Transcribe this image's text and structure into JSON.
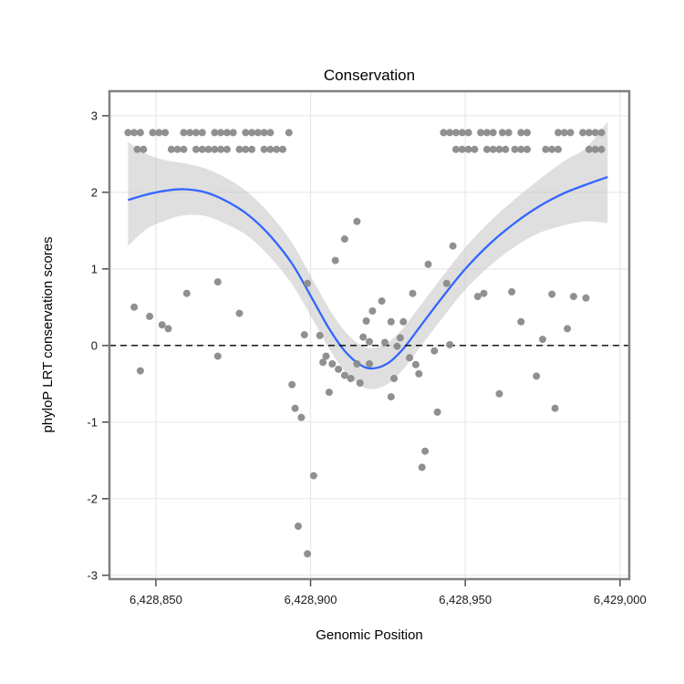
{
  "title": "Conservation",
  "colors": {
    "smooth_line": "#3366FF",
    "ribbon": "#bfbfbf",
    "point": "#8a8a8a",
    "grid": "#e8e8e8",
    "panel_border": "#808080",
    "reference_line": "#000000"
  },
  "chart_data": {
    "type": "scatter",
    "title": "Conservation",
    "xlabel": "Genomic Position",
    "ylabel": "phyloP LRT conservation scores",
    "xlim": [
      6428835,
      6429003
    ],
    "ylim": [
      -3.05,
      3.32
    ],
    "grid": true,
    "legend": "none",
    "reference_line_y": 0,
    "x_ticks": [
      {
        "value": 6428850,
        "label": "6,428,850"
      },
      {
        "value": 6428900,
        "label": "6,428,900"
      },
      {
        "value": 6428950,
        "label": "6,428,950"
      },
      {
        "value": 6429000,
        "label": "6,429,000"
      }
    ],
    "y_ticks": [
      {
        "value": 3,
        "label": "3"
      },
      {
        "value": 2,
        "label": "2"
      },
      {
        "value": 1,
        "label": "1"
      },
      {
        "value": 0,
        "label": "0"
      },
      {
        "value": -1,
        "label": "-1"
      },
      {
        "value": -2,
        "label": "-2"
      },
      {
        "value": -3,
        "label": "-3"
      }
    ],
    "points": [
      [
        6428841,
        2.78
      ],
      [
        6428843,
        2.78
      ],
      [
        6428845,
        2.78
      ],
      [
        6428849,
        2.78
      ],
      [
        6428851,
        2.78
      ],
      [
        6428853,
        2.78
      ],
      [
        6428859,
        2.78
      ],
      [
        6428861,
        2.78
      ],
      [
        6428863,
        2.78
      ],
      [
        6428865,
        2.78
      ],
      [
        6428869,
        2.78
      ],
      [
        6428871,
        2.78
      ],
      [
        6428873,
        2.78
      ],
      [
        6428875,
        2.78
      ],
      [
        6428879,
        2.78
      ],
      [
        6428881,
        2.78
      ],
      [
        6428883,
        2.78
      ],
      [
        6428885,
        2.78
      ],
      [
        6428887,
        2.78
      ],
      [
        6428893,
        2.78
      ],
      [
        6428844,
        2.56
      ],
      [
        6428846,
        2.56
      ],
      [
        6428855,
        2.56
      ],
      [
        6428857,
        2.56
      ],
      [
        6428859,
        2.56
      ],
      [
        6428863,
        2.56
      ],
      [
        6428865,
        2.56
      ],
      [
        6428867,
        2.56
      ],
      [
        6428869,
        2.56
      ],
      [
        6428871,
        2.56
      ],
      [
        6428873,
        2.56
      ],
      [
        6428877,
        2.56
      ],
      [
        6428879,
        2.56
      ],
      [
        6428881,
        2.56
      ],
      [
        6428885,
        2.56
      ],
      [
        6428887,
        2.56
      ],
      [
        6428889,
        2.56
      ],
      [
        6428891,
        2.56
      ],
      [
        6428943,
        2.78
      ],
      [
        6428945,
        2.78
      ],
      [
        6428947,
        2.78
      ],
      [
        6428949,
        2.78
      ],
      [
        6428951,
        2.78
      ],
      [
        6428955,
        2.78
      ],
      [
        6428957,
        2.78
      ],
      [
        6428959,
        2.78
      ],
      [
        6428962,
        2.78
      ],
      [
        6428964,
        2.78
      ],
      [
        6428968,
        2.78
      ],
      [
        6428970,
        2.78
      ],
      [
        6428980,
        2.78
      ],
      [
        6428982,
        2.78
      ],
      [
        6428984,
        2.78
      ],
      [
        6428988,
        2.78
      ],
      [
        6428990,
        2.78
      ],
      [
        6428992,
        2.78
      ],
      [
        6428994,
        2.78
      ],
      [
        6428947,
        2.56
      ],
      [
        6428949,
        2.56
      ],
      [
        6428951,
        2.56
      ],
      [
        6428953,
        2.56
      ],
      [
        6428957,
        2.56
      ],
      [
        6428959,
        2.56
      ],
      [
        6428961,
        2.56
      ],
      [
        6428963,
        2.56
      ],
      [
        6428966,
        2.56
      ],
      [
        6428968,
        2.56
      ],
      [
        6428970,
        2.56
      ],
      [
        6428976,
        2.56
      ],
      [
        6428978,
        2.56
      ],
      [
        6428980,
        2.56
      ],
      [
        6428990,
        2.56
      ],
      [
        6428992,
        2.56
      ],
      [
        6428994,
        2.56
      ],
      [
        6428843,
        0.5
      ],
      [
        6428845,
        -0.33
      ],
      [
        6428848,
        0.38
      ],
      [
        6428852,
        0.27
      ],
      [
        6428854,
        0.22
      ],
      [
        6428860,
        0.68
      ],
      [
        6428870,
        0.83
      ],
      [
        6428870,
        -0.14
      ],
      [
        6428877,
        0.42
      ],
      [
        6428894,
        -0.51
      ],
      [
        6428895,
        -0.82
      ],
      [
        6428896,
        -2.36
      ],
      [
        6428897,
        -0.94
      ],
      [
        6428898,
        0.14
      ],
      [
        6428899,
        0.81
      ],
      [
        6428899,
        -2.72
      ],
      [
        6428901,
        -1.7
      ],
      [
        6428903,
        0.13
      ],
      [
        6428904,
        -0.22
      ],
      [
        6428905,
        -0.14
      ],
      [
        6428906,
        -0.61
      ],
      [
        6428907,
        -0.24
      ],
      [
        6428908,
        1.11
      ],
      [
        6428909,
        -0.31
      ],
      [
        6428911,
        1.39
      ],
      [
        6428911,
        -0.39
      ],
      [
        6428913,
        -0.43
      ],
      [
        6428915,
        1.62
      ],
      [
        6428915,
        -0.24
      ],
      [
        6428916,
        -0.49
      ],
      [
        6428917,
        0.11
      ],
      [
        6428918,
        0.32
      ],
      [
        6428919,
        -0.24
      ],
      [
        6428919,
        0.05
      ],
      [
        6428920,
        0.45
      ],
      [
        6428923,
        0.58
      ],
      [
        6428924,
        0.04
      ],
      [
        6428926,
        0.31
      ],
      [
        6428926,
        -0.67
      ],
      [
        6428927,
        -0.43
      ],
      [
        6428928,
        -0.01
      ],
      [
        6428929,
        0.1
      ],
      [
        6428930,
        0.31
      ],
      [
        6428932,
        -0.16
      ],
      [
        6428933,
        0.68
      ],
      [
        6428934,
        -0.25
      ],
      [
        6428935,
        -0.37
      ],
      [
        6428936,
        -1.59
      ],
      [
        6428937,
        -1.38
      ],
      [
        6428938,
        1.06
      ],
      [
        6428940,
        -0.07
      ],
      [
        6428941,
        -0.87
      ],
      [
        6428944,
        0.81
      ],
      [
        6428945,
        0.01
      ],
      [
        6428946,
        1.3
      ],
      [
        6428954,
        0.64
      ],
      [
        6428956,
        0.68
      ],
      [
        6428961,
        -0.63
      ],
      [
        6428965,
        0.7
      ],
      [
        6428968,
        0.31
      ],
      [
        6428973,
        -0.4
      ],
      [
        6428975,
        0.08
      ],
      [
        6428978,
        0.67
      ],
      [
        6428979,
        -0.82
      ],
      [
        6428983,
        0.22
      ],
      [
        6428985,
        0.64
      ],
      [
        6428989,
        0.62
      ]
    ],
    "smooth": {
      "x": [
        6428841,
        6428847,
        6428853,
        6428859,
        6428866,
        6428873,
        6428880,
        6428887,
        6428894,
        6428900,
        6428906,
        6428911,
        6428916,
        6428920,
        6428925,
        6428930,
        6428936,
        6428943,
        6428950,
        6428958,
        6428966,
        6428974,
        6428982,
        6428989,
        6428996
      ],
      "fit": [
        1.9,
        1.97,
        2.02,
        2.04,
        2.0,
        1.88,
        1.7,
        1.43,
        1.07,
        0.65,
        0.22,
        -0.07,
        -0.25,
        -0.3,
        -0.23,
        -0.04,
        0.28,
        0.65,
        1.0,
        1.33,
        1.6,
        1.82,
        1.99,
        2.1,
        2.2
      ],
      "lower": [
        1.3,
        1.52,
        1.63,
        1.7,
        1.69,
        1.58,
        1.42,
        1.15,
        0.8,
        0.39,
        -0.04,
        -0.33,
        -0.52,
        -0.57,
        -0.5,
        -0.31,
        0.01,
        0.38,
        0.73,
        1.04,
        1.29,
        1.47,
        1.57,
        1.62,
        1.6
      ],
      "upper": [
        2.66,
        2.5,
        2.42,
        2.38,
        2.31,
        2.18,
        1.99,
        1.71,
        1.34,
        0.91,
        0.48,
        0.19,
        0.01,
        -0.03,
        0.04,
        0.23,
        0.55,
        0.92,
        1.28,
        1.62,
        1.91,
        2.17,
        2.41,
        2.58,
        2.92
      ]
    }
  }
}
